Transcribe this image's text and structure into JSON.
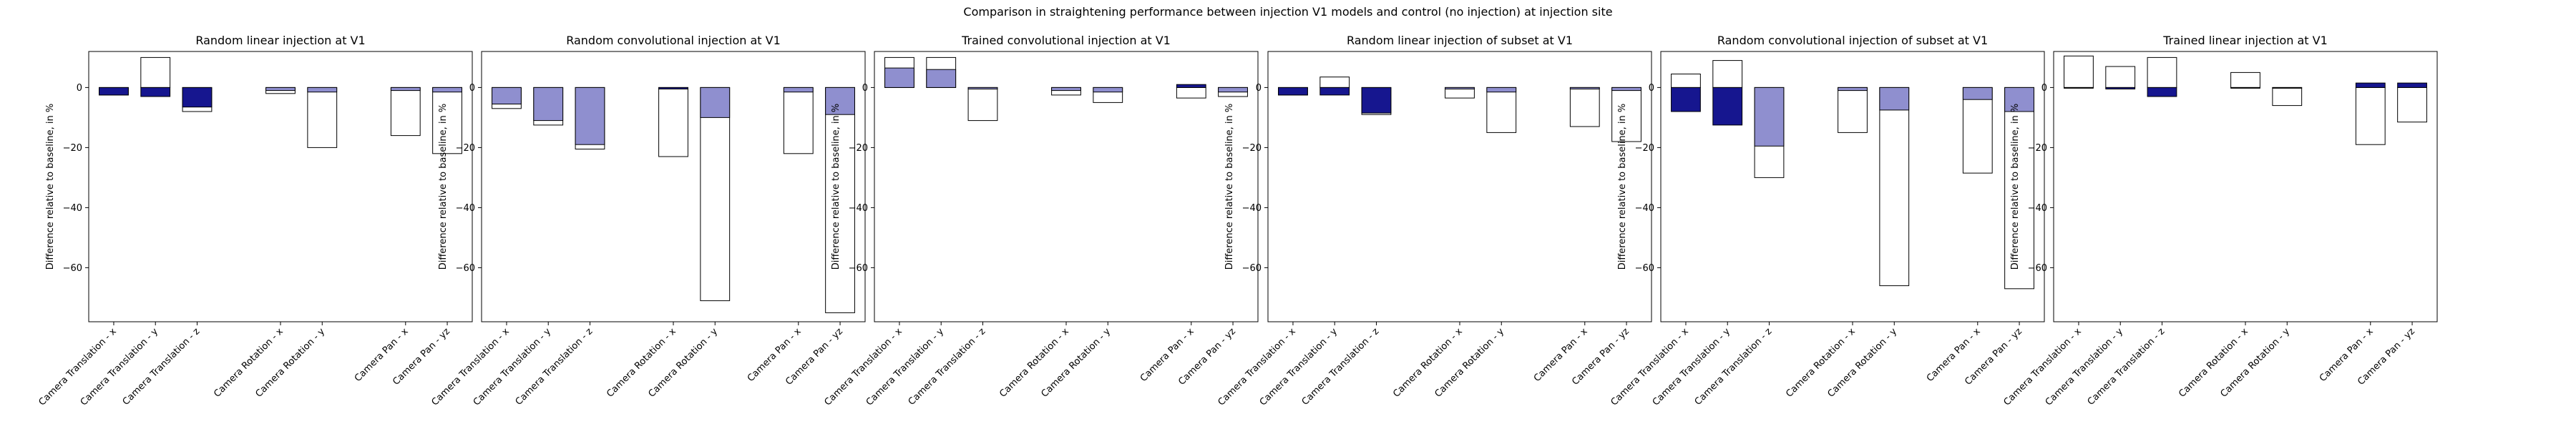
{
  "suptitle": "Comparison in straightening performance between injection V1 models and control (no injection) at injection site",
  "legend_colors": {
    "outline": "#000000",
    "bar_light": "#8f8fcf",
    "bar_dark": "#16168f",
    "bar_white": "#ffffff"
  },
  "chart_data": [
    {
      "type": "bar",
      "title": "Random linear injection at V1",
      "ylabel": "Difference relative to baseline, in %",
      "ylim": [
        -78,
        12
      ],
      "yticks": [
        0,
        -20,
        -40,
        -60
      ],
      "categories": [
        "Camera Translation - x",
        "Camera Translation - y",
        "Camera Translation - z",
        "Camera Rotation - x",
        "Camera Rotation - y",
        "Camera Pan - x",
        "Camera Pan - yz"
      ],
      "x": [
        1,
        2,
        3,
        5,
        6,
        8,
        9
      ],
      "outer": [
        -2.5,
        10,
        -8,
        -2,
        -20,
        -16,
        -22
      ],
      "inner": [
        -2.5,
        -3,
        -6.5,
        -1,
        -1.5,
        -1,
        -1.5
      ],
      "inner_color": [
        "dark",
        "dark",
        "dark",
        "light",
        "light",
        "light",
        "light"
      ]
    },
    {
      "type": "bar",
      "title": "Random convolutional injection at V1",
      "ylabel": "Difference relative to baseline, in %",
      "ylim": [
        -78,
        12
      ],
      "yticks": [
        0,
        -20,
        -40,
        -60
      ],
      "categories": [
        "Camera Translation - x",
        "Camera Translation - y",
        "Camera Translation - z",
        "Camera Rotation - x",
        "Camera Rotation - y",
        "Camera Pan - x",
        "Camera Pan - yz"
      ],
      "x": [
        1,
        2,
        3,
        5,
        6,
        8,
        9
      ],
      "outer": [
        -7,
        -12.5,
        -20.5,
        -23,
        -71,
        -22,
        -75
      ],
      "inner": [
        -5.5,
        -11,
        -19,
        -0.5,
        -10,
        -1.5,
        -9
      ],
      "inner_color": [
        "light",
        "light",
        "light",
        "dark",
        "light",
        "light",
        "light"
      ]
    },
    {
      "type": "bar",
      "title": "Trained convolutional injection at V1",
      "ylabel": "Difference relative to baseline, in %",
      "ylim": [
        -78,
        12
      ],
      "yticks": [
        0,
        -20,
        -40,
        -60
      ],
      "categories": [
        "Camera Translation - x",
        "Camera Translation - y",
        "Camera Translation - z",
        "Camera Rotation - x",
        "Camera Rotation - y",
        "Camera Pan - x",
        "Camera Pan - yz"
      ],
      "x": [
        1,
        2,
        3,
        5,
        6,
        8,
        9
      ],
      "outer": [
        10,
        10,
        -11,
        -2.5,
        -5,
        -3.5,
        -3
      ],
      "inner": [
        6.5,
        6,
        -0.5,
        -1,
        -1.5,
        1,
        -1.5
      ],
      "inner_color": [
        "light",
        "light",
        "light",
        "light",
        "light",
        "dark",
        "light"
      ]
    },
    {
      "type": "bar",
      "title": "Random linear injection of subset at V1",
      "ylabel": "Difference relative to baseline, in %",
      "ylim": [
        -78,
        12
      ],
      "yticks": [
        0,
        -20,
        -40,
        -60
      ],
      "categories": [
        "Camera Translation - x",
        "Camera Translation - y",
        "Camera Translation - z",
        "Camera Rotation - x",
        "Camera Rotation - y",
        "Camera Pan - x",
        "Camera Pan - yz"
      ],
      "x": [
        1,
        2,
        3,
        5,
        6,
        8,
        9
      ],
      "outer": [
        -2.5,
        3.5,
        -9,
        -3.5,
        -15,
        -13,
        -18
      ],
      "inner": [
        -2.5,
        -2.5,
        -8.5,
        -0.5,
        -1.5,
        -0.5,
        -1
      ],
      "inner_color": [
        "dark",
        "dark",
        "dark",
        "light",
        "light",
        "light",
        "light"
      ]
    },
    {
      "type": "bar",
      "title": "Random convolutional injection of subset at V1",
      "ylabel": "Difference relative to baseline, in %",
      "ylim": [
        -78,
        12
      ],
      "yticks": [
        0,
        -20,
        -40,
        -60
      ],
      "categories": [
        "Camera Translation - x",
        "Camera Translation - y",
        "Camera Translation - z",
        "Camera Rotation - x",
        "Camera Rotation - y",
        "Camera Pan - x",
        "Camera Pan - yz"
      ],
      "x": [
        1,
        2,
        3,
        5,
        6,
        8,
        9
      ],
      "outer": [
        4.5,
        9,
        -30,
        -15,
        -66,
        -28.5,
        -67
      ],
      "inner": [
        -8,
        -12.5,
        -19.5,
        -1,
        -7.5,
        -4,
        -8
      ],
      "inner_color": [
        "dark",
        "dark",
        "light",
        "light",
        "light",
        "light",
        "light"
      ]
    },
    {
      "type": "bar",
      "title": "Trained linear injection at V1",
      "ylabel": "Difference relative to baseline, in %",
      "ylim": [
        -78,
        12
      ],
      "yticks": [
        0,
        -20,
        -40,
        -60
      ],
      "categories": [
        "Camera Translation - x",
        "Camera Translation - y",
        "Camera Translation - z",
        "Camera Rotation - x",
        "Camera Rotation - y",
        "Camera Pan - x",
        "Camera Pan - yz"
      ],
      "x": [
        1,
        2,
        3,
        5,
        6,
        8,
        9
      ],
      "outer": [
        10.5,
        7,
        10,
        5,
        -6,
        -19,
        -11.5
      ],
      "inner": [
        0,
        -0.5,
        -3,
        0,
        0,
        1.5,
        1.5
      ],
      "inner_color": [
        "dark",
        "dark",
        "dark",
        "dark",
        "dark",
        "dark",
        "dark"
      ]
    }
  ]
}
